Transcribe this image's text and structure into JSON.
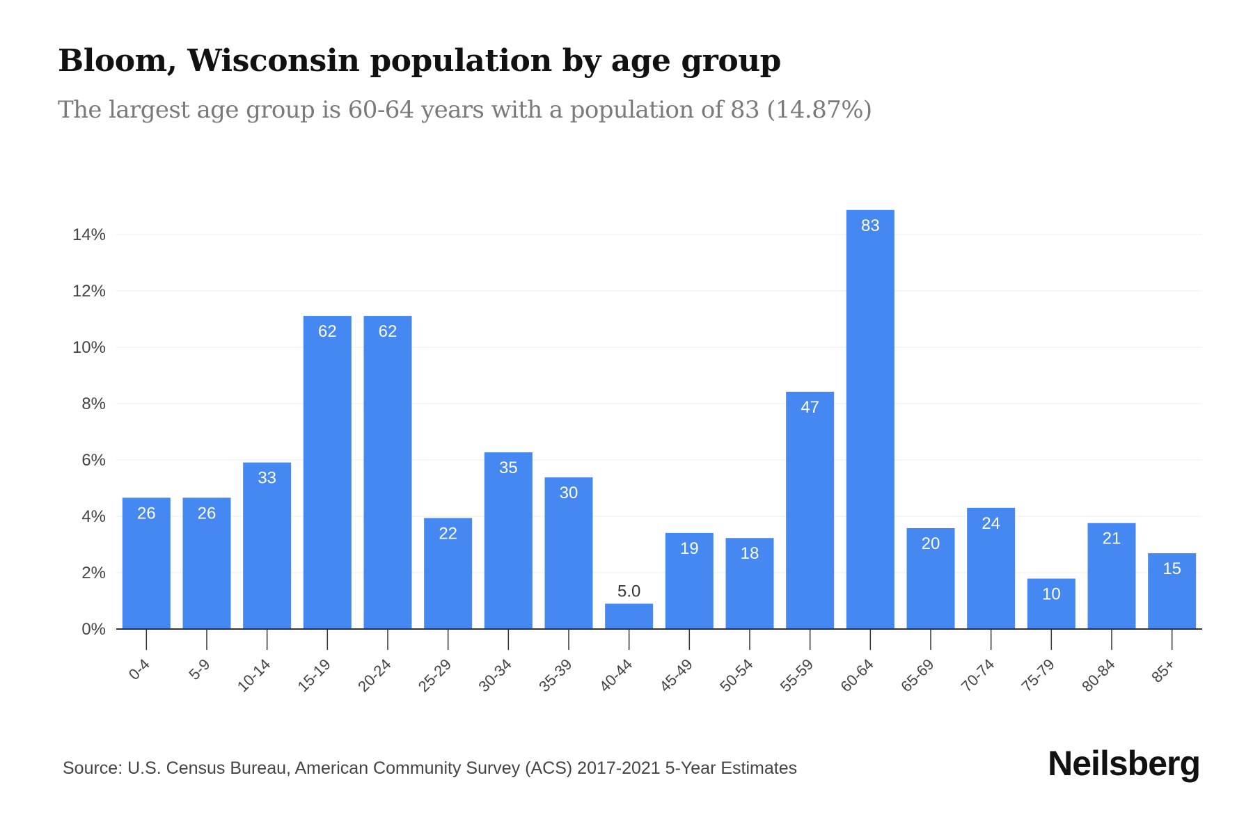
{
  "header": {
    "title": "Bloom, Wisconsin population by age group",
    "subtitle": "The largest age group is 60-64 years with a population of 83 (14.87%)"
  },
  "footer": {
    "source": "Source: U.S. Census Bureau, American Community Survey (ACS) 2017-2021 5-Year Estimates",
    "logo": "Neilsberg"
  },
  "colors": {
    "bar": "#4688f1",
    "grid": "#ececec",
    "axis": "#333333",
    "label_inside": "#ffffff",
    "label_outside": "#333333"
  },
  "chart_data": {
    "type": "bar",
    "title": "Bloom, Wisconsin population by age group",
    "subtitle": "The largest age group is 60-64 years with a population of 83 (14.87%)",
    "xlabel": "",
    "ylabel": "",
    "categories": [
      "0-4",
      "5-9",
      "10-14",
      "15-19",
      "20-24",
      "25-29",
      "30-34",
      "35-39",
      "40-44",
      "45-49",
      "50-54",
      "55-59",
      "60-64",
      "65-69",
      "70-74",
      "75-79",
      "80-84",
      "85+"
    ],
    "values": [
      4.66,
      4.66,
      5.91,
      11.11,
      11.11,
      3.94,
      6.27,
      5.38,
      0.9,
      3.41,
      3.23,
      8.42,
      14.87,
      3.58,
      4.3,
      1.79,
      3.76,
      2.69
    ],
    "data_labels": [
      "26",
      "26",
      "33",
      "62",
      "62",
      "22",
      "35",
      "30",
      "5.0",
      "19",
      "18",
      "47",
      "83",
      "20",
      "24",
      "10",
      "21",
      "15"
    ],
    "y_ticks": [
      "0%",
      "2%",
      "4%",
      "6%",
      "8%",
      "10%",
      "12%",
      "14%"
    ],
    "ylim": [
      0,
      14.87
    ],
    "grid": true,
    "legend": "none"
  }
}
